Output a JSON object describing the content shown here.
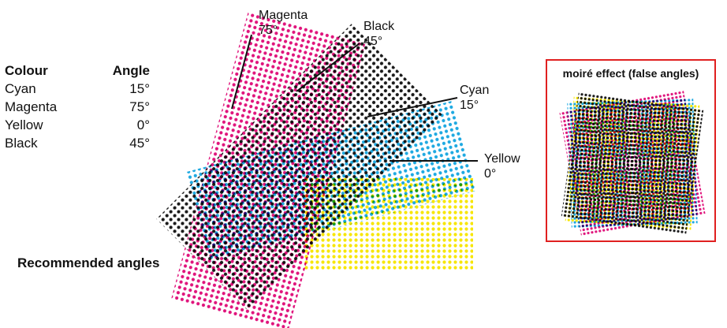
{
  "table": {
    "header": {
      "colour": "Colour",
      "angle": "Angle"
    },
    "rows": [
      {
        "colour": "Cyan",
        "angle": "15°"
      },
      {
        "colour": "Magenta",
        "angle": "75°"
      },
      {
        "colour": "Yellow",
        "angle": "0°"
      },
      {
        "colour": "Black",
        "angle": "45°"
      }
    ]
  },
  "screens": [
    {
      "key": "yellow",
      "name": "Yellow",
      "angle": "0°",
      "color": "#f7e600"
    },
    {
      "key": "cyan",
      "name": "Cyan",
      "angle": "15°",
      "color": "#1ea9e1"
    },
    {
      "key": "magenta",
      "name": "Magenta",
      "angle": "75°",
      "color": "#e0147c"
    },
    {
      "key": "black",
      "name": "Black",
      "angle": "45°",
      "color": "#1a1a1a"
    }
  ],
  "recommended_label": "Recommended angles",
  "moire": {
    "title": "moiré effect (false angles)"
  }
}
